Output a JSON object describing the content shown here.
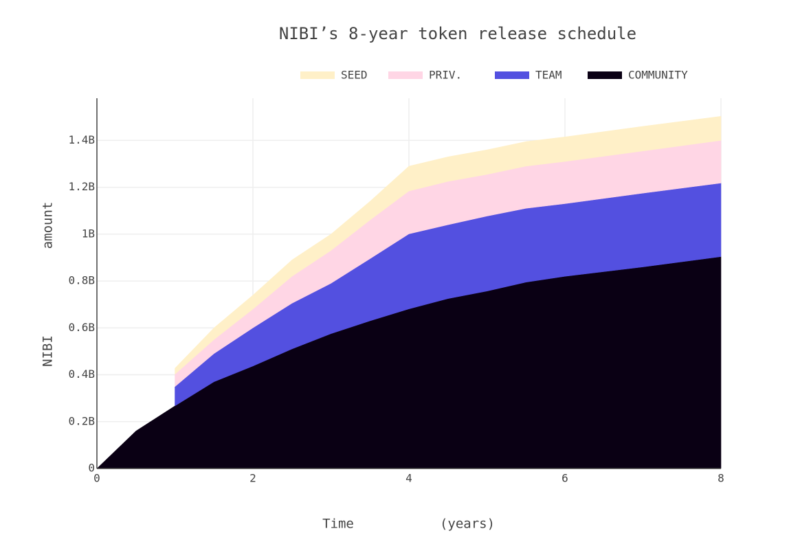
{
  "chart_data": {
    "type": "stacked-area",
    "title": "NIBI’s 8-year token release schedule",
    "xlabel": [
      "Time",
      "(years)"
    ],
    "ylabel": [
      "NIBI",
      "amount"
    ],
    "x": [
      0,
      0.5,
      1,
      1.5,
      2,
      2.5,
      3,
      3.5,
      4,
      4.5,
      5,
      5.5,
      6,
      7,
      8
    ],
    "series": [
      {
        "name": "COMMUNITY",
        "color": "#0a0014",
        "values": [
          0,
          0.16,
          0.267,
          0.37,
          0.437,
          0.51,
          0.575,
          0.63,
          0.681,
          0.725,
          0.757,
          0.795,
          0.82,
          0.86,
          0.904
        ]
      },
      {
        "name": "TEAM",
        "color": "#5350e0",
        "values": [
          null,
          null,
          0.082,
          0.12,
          0.163,
          0.195,
          0.215,
          0.265,
          0.32,
          0.315,
          0.32,
          0.315,
          0.31,
          0.315,
          0.314
        ]
      },
      {
        "name": "PRIV.",
        "color": "#ffd6e5",
        "values": [
          null,
          null,
          0.053,
          0.06,
          0.08,
          0.115,
          0.14,
          0.165,
          0.183,
          0.185,
          0.178,
          0.18,
          0.18,
          0.18,
          0.182
        ]
      },
      {
        "name": "SEED",
        "color": "#fff0c8",
        "values": [
          null,
          null,
          0.026,
          0.05,
          0.06,
          0.07,
          0.07,
          0.08,
          0.106,
          0.105,
          0.105,
          0.105,
          0.105,
          0.105,
          0.103
        ]
      }
    ],
    "xlim": [
      0,
      8
    ],
    "xticks": [
      0,
      2,
      4,
      6,
      8
    ],
    "ylim": [
      0,
      1.58
    ],
    "yticks": [
      0,
      {
        "value": 0.2,
        "label": "0.2B"
      },
      {
        "value": 0.4,
        "label": "0.4B"
      },
      {
        "value": 0.6,
        "label": "0.6B"
      },
      {
        "value": 0.8,
        "label": "0.8B"
      },
      {
        "value": 1,
        "label": "1B"
      },
      {
        "value": 1.2,
        "label": "1.2B"
      },
      {
        "value": 1.4,
        "label": "1.4B"
      }
    ],
    "grid": true
  }
}
